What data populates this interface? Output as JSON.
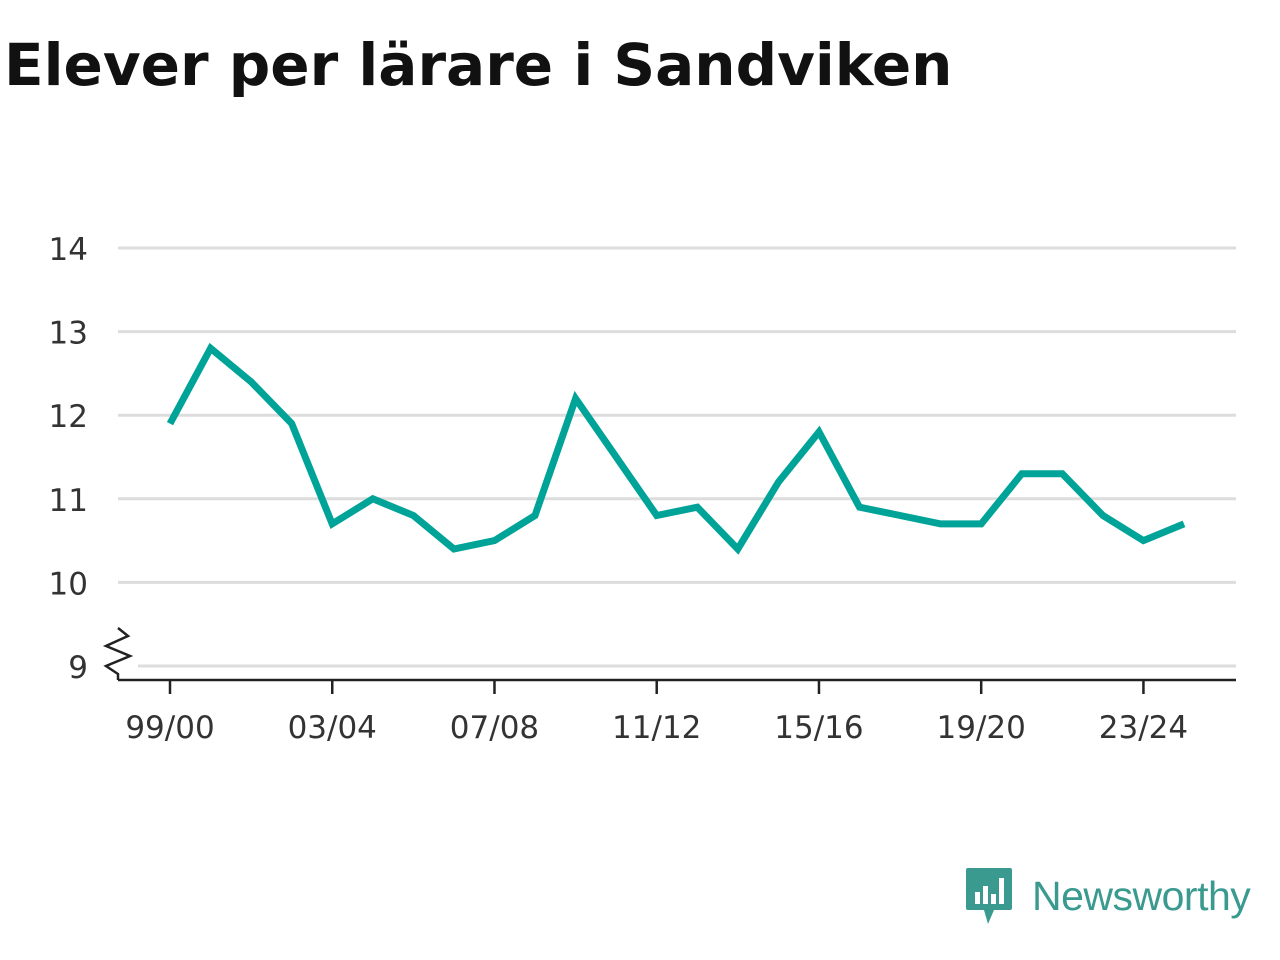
{
  "chart_data": {
    "type": "line",
    "title": "Elever per lärare i Sandviken",
    "xlabel": "",
    "ylabel": "",
    "x": [
      "99/00",
      "00/01",
      "01/02",
      "02/03",
      "03/04",
      "04/05",
      "05/06",
      "06/07",
      "07/08",
      "08/09",
      "09/10",
      "10/11",
      "11/12",
      "12/13",
      "13/14",
      "14/15",
      "15/16",
      "16/17",
      "17/18",
      "18/19",
      "19/20",
      "20/21",
      "21/22",
      "22/23",
      "23/24",
      "24/25"
    ],
    "x_tick_labels": [
      "99/00",
      "03/04",
      "07/08",
      "11/12",
      "15/16",
      "19/20",
      "23/24"
    ],
    "series": [
      {
        "values": [
          11.9,
          12.8,
          12.4,
          11.9,
          10.7,
          11.0,
          10.8,
          10.4,
          10.5,
          10.8,
          12.2,
          11.5,
          10.8,
          10.9,
          10.4,
          11.2,
          11.8,
          10.9,
          10.8,
          10.7,
          10.7,
          11.3,
          11.3,
          10.8,
          10.5,
          10.7
        ]
      }
    ],
    "y_ticks": [
      9,
      10,
      11,
      12,
      13,
      14
    ],
    "ylim": [
      9,
      14
    ],
    "y_axis_break": true,
    "grid": true,
    "line_color": "#00a398",
    "grid_color": "#dddddd"
  },
  "brand": {
    "name": "Newsworthy",
    "color": "#3a9a8f",
    "icon": "newsworthy-logo-icon"
  }
}
